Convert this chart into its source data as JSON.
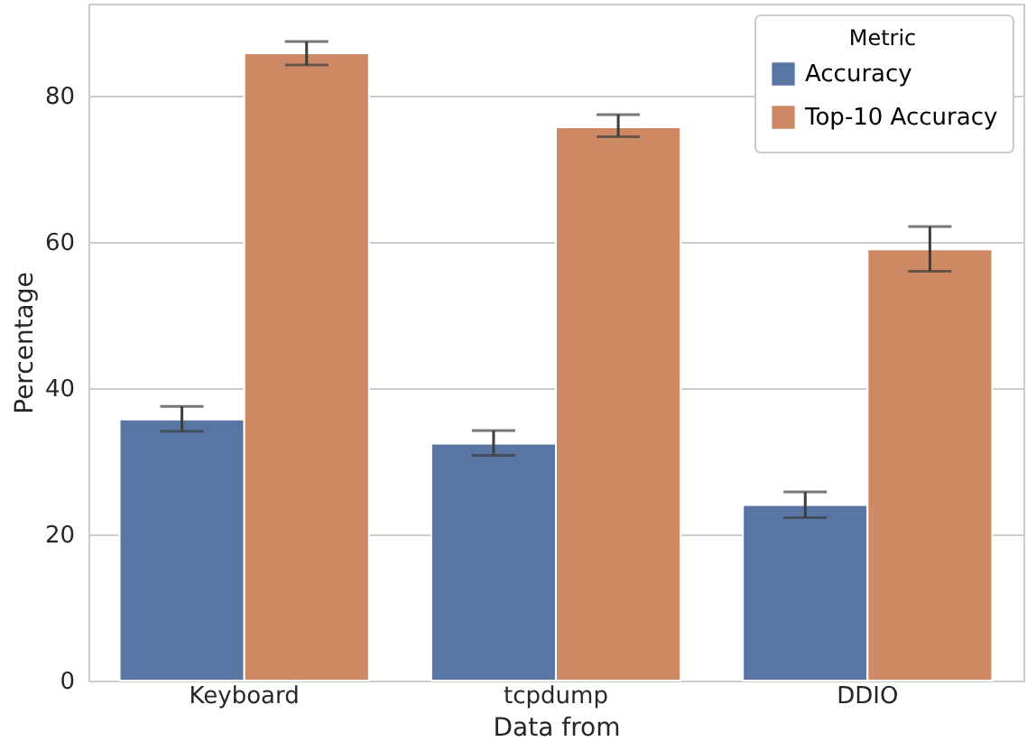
{
  "chart_data": {
    "type": "bar",
    "xlabel": "Data from",
    "ylabel": "Percentage",
    "legend_title": "Metric",
    "categories": [
      "Keyboard",
      "tcpdump",
      "DDIO"
    ],
    "series": [
      {
        "name": "Accuracy",
        "color": "#5975a4",
        "values": [
          35.7,
          32.4,
          24.0
        ],
        "errors": [
          [
            34.1,
            37.5
          ],
          [
            30.8,
            34.2
          ],
          [
            22.3,
            25.8
          ]
        ]
      },
      {
        "name": "Top-10 Accuracy",
        "color": "#cc8963",
        "values": [
          85.8,
          75.7,
          59.0
        ],
        "errors": [
          [
            84.2,
            87.4
          ],
          [
            74.4,
            77.4
          ],
          [
            56.0,
            62.1
          ]
        ]
      }
    ],
    "ylim": [
      0,
      92.6
    ],
    "yticks": [
      0,
      20,
      40,
      60,
      80
    ],
    "grid": "y",
    "legend": "top right"
  }
}
